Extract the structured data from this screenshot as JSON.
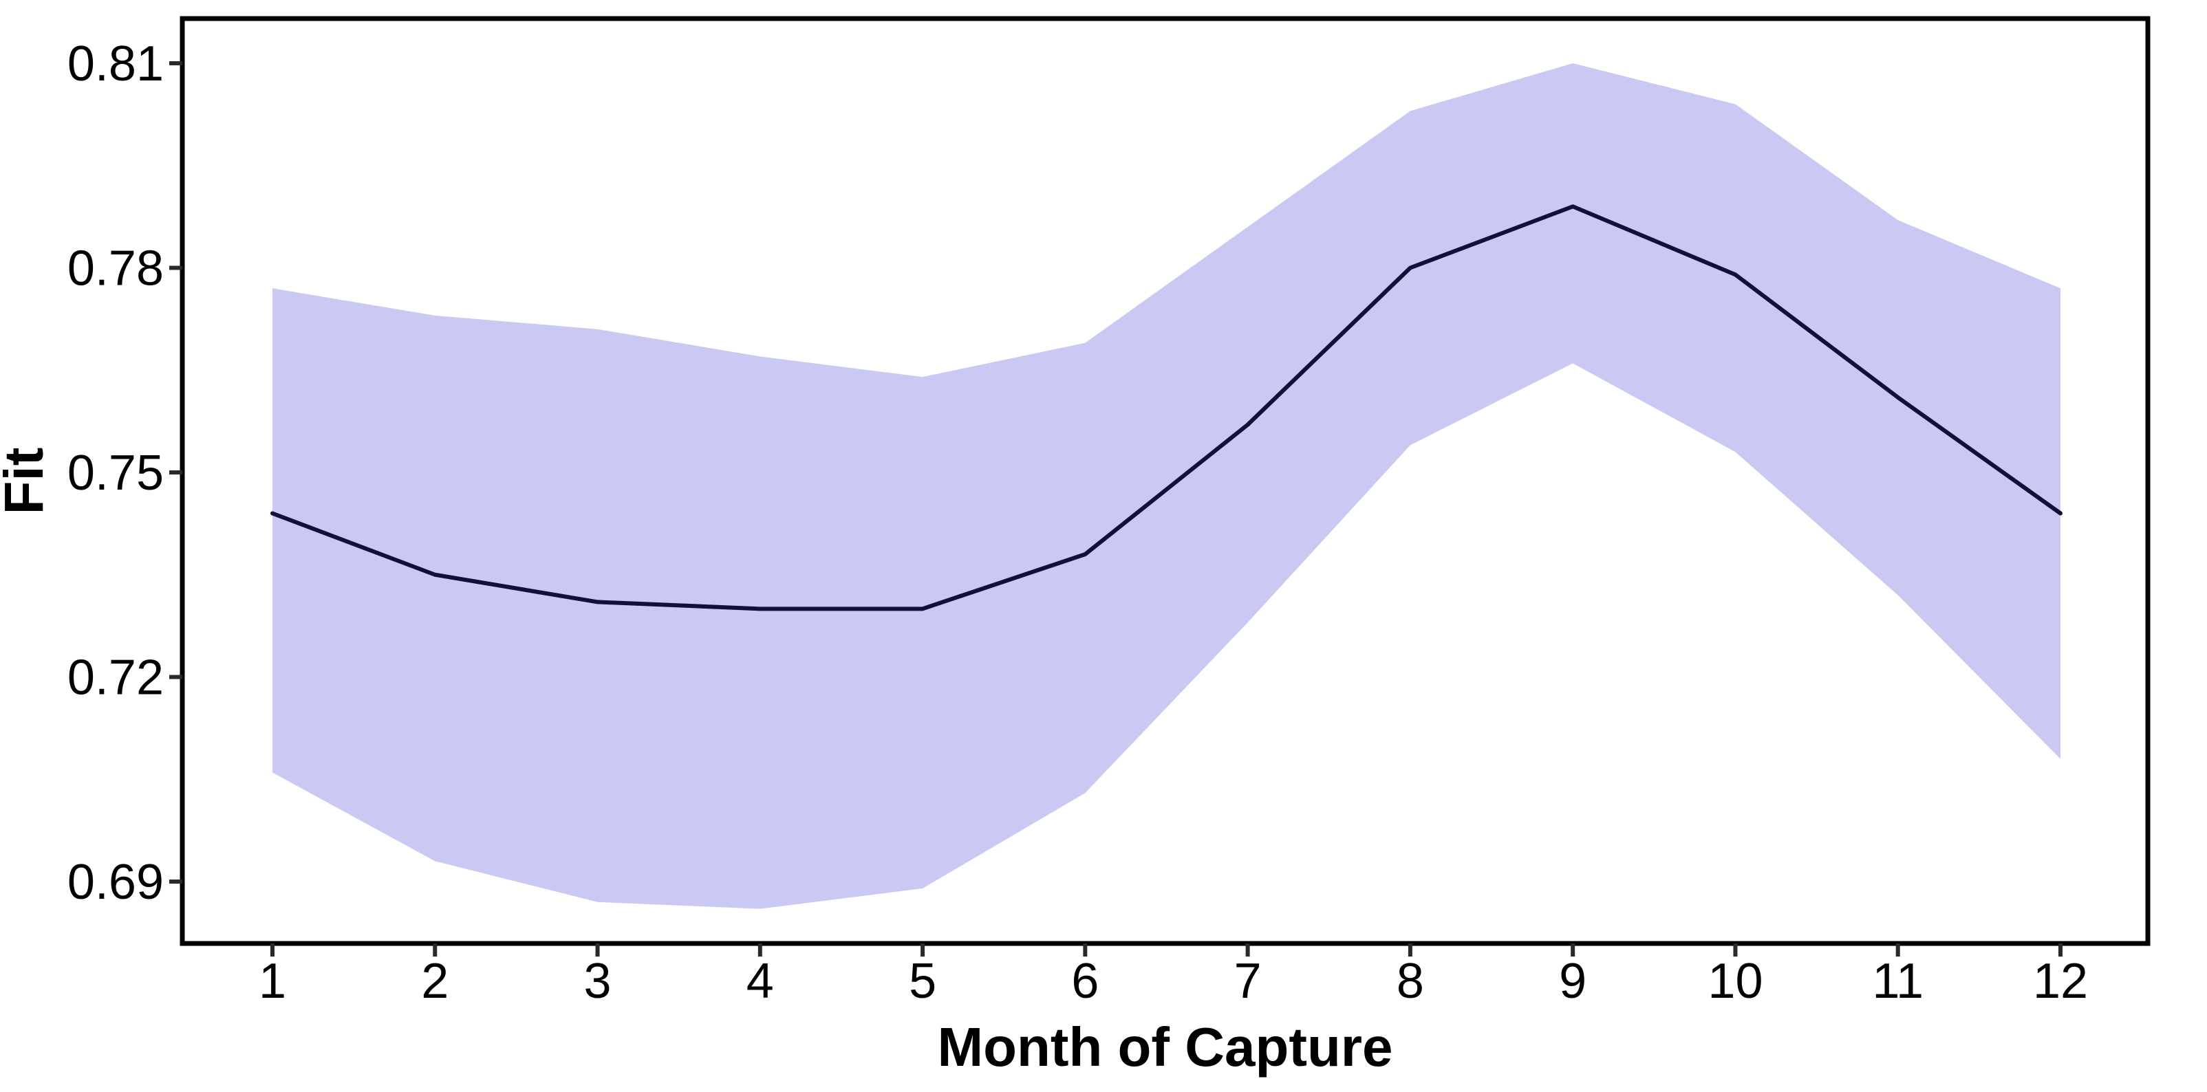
{
  "figure": {
    "xlabel": "Month of Capture",
    "ylabel": "Fit"
  },
  "chart_data": {
    "type": "line",
    "title": "",
    "xlabel": "Month of Capture",
    "ylabel": "Fit",
    "x": [
      1,
      2,
      3,
      4,
      5,
      6,
      7,
      8,
      9,
      10,
      11,
      12
    ],
    "series": [
      {
        "name": "fit",
        "role": "line",
        "values": [
          0.744,
          0.735,
          0.731,
          0.73,
          0.73,
          0.738,
          0.757,
          0.78,
          0.789,
          0.779,
          0.761,
          0.744
        ]
      },
      {
        "name": "ci_lower",
        "role": "ribbon-lower",
        "values": [
          0.706,
          0.693,
          0.687,
          0.686,
          0.689,
          0.703,
          0.728,
          0.754,
          0.766,
          0.753,
          0.732,
          0.708
        ]
      },
      {
        "name": "ci_upper",
        "role": "ribbon-upper",
        "values": [
          0.777,
          0.773,
          0.771,
          0.767,
          0.764,
          0.769,
          0.786,
          0.803,
          0.81,
          0.804,
          0.787,
          0.777
        ]
      }
    ],
    "band": "confidence-interval-ribbon",
    "x_ticks": {
      "values": [
        1,
        2,
        3,
        4,
        5,
        6,
        7,
        8,
        9,
        10,
        11,
        12
      ],
      "labels": [
        "1",
        "2",
        "3",
        "4",
        "5",
        "6",
        "7",
        "8",
        "9",
        "10",
        "11",
        "12"
      ]
    },
    "y_ticks": {
      "values": [
        0.69,
        0.72,
        0.75,
        0.78,
        0.81
      ],
      "labels": [
        "0.69",
        "0.72",
        "0.75",
        "0.78",
        "0.81"
      ]
    },
    "xlim": [
      0.446,
      12.537
    ],
    "ylim": [
      0.681,
      0.8166
    ],
    "grid": false,
    "legend": "none",
    "colors": {
      "line": "#10103a",
      "ribbon": "#c9c9f3",
      "panel_border": "#000000",
      "tick": "#2a2a2a",
      "text": "#000000",
      "background": "#ffffff"
    }
  }
}
